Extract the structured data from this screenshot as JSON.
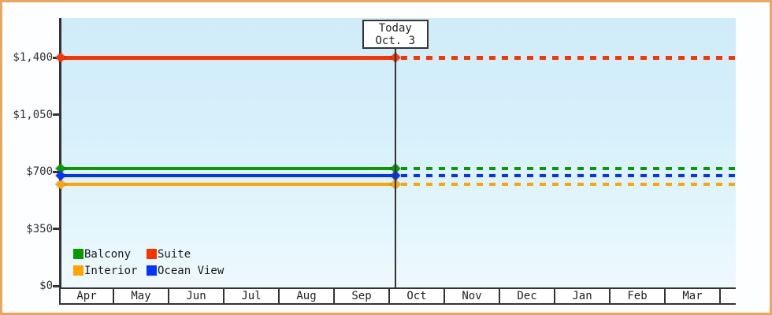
{
  "frame": {
    "border_color": "#eaa55e",
    "background_color": "#fdfeff",
    "plot_background_top": "#cfecf8",
    "plot_background_bottom": "#eef9fe"
  },
  "chart_data": {
    "type": "line",
    "title": "",
    "xlabel": "",
    "ylabel": "",
    "categories": [
      "Apr",
      "May",
      "Jun",
      "Jul",
      "Aug",
      "Sep",
      "Oct",
      "Nov",
      "Dec",
      "Jan",
      "Feb",
      "Mar"
    ],
    "y_ticks": [
      {
        "value": 0,
        "label": "$0"
      },
      {
        "value": 350,
        "label": "$350"
      },
      {
        "value": 700,
        "label": "$700"
      },
      {
        "value": 1050,
        "label": "$1,050"
      },
      {
        "value": 1400,
        "label": "$1,400"
      }
    ],
    "ylim": [
      0,
      1650
    ],
    "grid": "off",
    "legend_position": "inside-bottom-left",
    "series": [
      {
        "name": "Balcony",
        "color": "#089b00",
        "line_width": 4,
        "values": [
          720,
          720,
          720,
          720,
          720,
          720,
          720,
          720,
          720,
          720,
          720,
          720
        ]
      },
      {
        "name": "Suite",
        "color": "#ff3300",
        "line_width": 5,
        "values": [
          1400,
          1400,
          1400,
          1400,
          1400,
          1400,
          1400,
          1400,
          1400,
          1400,
          1400,
          1400
        ]
      },
      {
        "name": "Interior",
        "color": "#ffa500",
        "line_width": 4,
        "values": [
          625,
          625,
          625,
          625,
          625,
          625,
          625,
          625,
          625,
          625,
          625,
          625
        ]
      },
      {
        "name": "Ocean View",
        "color": "#0433ff",
        "line_width": 4,
        "values": [
          675,
          675,
          675,
          675,
          675,
          675,
          675,
          675,
          675,
          675,
          675,
          675
        ]
      }
    ],
    "today": {
      "line1": "Today",
      "line2": "Oct. 3",
      "month_index": 6,
      "day_of_month": 3,
      "style_note": "solid line before today, dotted line after today"
    }
  }
}
